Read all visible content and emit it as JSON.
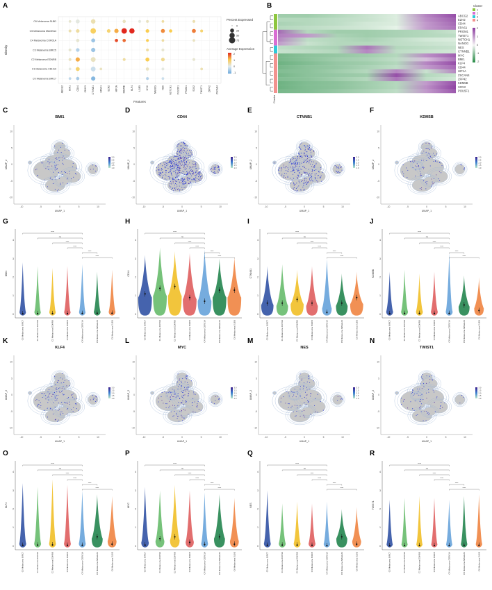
{
  "panel_letters": [
    "A",
    "B",
    "C",
    "D",
    "E",
    "F",
    "G",
    "H",
    "I",
    "J",
    "K",
    "L",
    "M",
    "N",
    "O",
    "P",
    "Q",
    "R"
  ],
  "chart_data": [
    {
      "panel": "A",
      "type": "scatter",
      "subtype": "dot-plot",
      "xlabel": "Features",
      "ylabel": "Identity",
      "features": [
        "ABCG2",
        "BMI1",
        "CD44",
        "CD133",
        "CTNNB1",
        "EPAS1",
        "EZH2",
        "HIF1A",
        "KDM5B",
        "KLF4",
        "LGR5",
        "MYC",
        "NANOG",
        "NES",
        "NOTCH1",
        "POU5F1",
        "PROM1",
        "SOX2",
        "TWIST1",
        "ZFP42",
        "ZSCAN4"
      ],
      "identities": [
        "C6 Melanoma SLBD",
        "C5 Melanoma MAGEA4",
        "C4 Melanoma COR01A",
        "C3 Melanoma BIRC5",
        "C2 Melanoma EDNRB",
        "C1 Melanoma CDH19",
        "C0 Melanoma BIRC7"
      ],
      "size_legend_title": "Percent Expressed",
      "size_breaks": [
        0,
        25,
        50,
        75
      ],
      "color_legend_title": "Average Expression",
      "color_breaks": [
        2,
        1,
        0,
        -1
      ],
      "dots": [
        {
          "r": 0,
          "c": 1,
          "pct": 8,
          "avg": 0.2
        },
        {
          "r": 0,
          "c": 2,
          "pct": 25,
          "avg": 0.1
        },
        {
          "r": 0,
          "c": 4,
          "pct": 35,
          "avg": 0.4
        },
        {
          "r": 0,
          "c": 8,
          "pct": 15,
          "avg": 0.3
        },
        {
          "r": 0,
          "c": 10,
          "pct": 10,
          "avg": 0.1
        },
        {
          "r": 0,
          "c": 11,
          "pct": 10,
          "avg": 0.3
        },
        {
          "r": 0,
          "c": 13,
          "pct": 8,
          "avg": 0.5
        },
        {
          "r": 0,
          "c": 17,
          "pct": 10,
          "avg": 0.4
        },
        {
          "r": 1,
          "c": 1,
          "pct": 10,
          "avg": 0.4
        },
        {
          "r": 1,
          "c": 2,
          "pct": 20,
          "avg": 0.5
        },
        {
          "r": 1,
          "c": 4,
          "pct": 55,
          "avg": 0.9
        },
        {
          "r": 1,
          "c": 6,
          "pct": 20,
          "avg": 0.8
        },
        {
          "r": 1,
          "c": 7,
          "pct": 30,
          "avg": 1.2
        },
        {
          "r": 1,
          "c": 8,
          "pct": 55,
          "avg": 2.0
        },
        {
          "r": 1,
          "c": 9,
          "pct": 50,
          "avg": 2.0
        },
        {
          "r": 1,
          "c": 11,
          "pct": 20,
          "avg": 1.0
        },
        {
          "r": 1,
          "c": 13,
          "pct": 25,
          "avg": 1.4
        },
        {
          "r": 1,
          "c": 14,
          "pct": 15,
          "avg": 1.0
        },
        {
          "r": 1,
          "c": 17,
          "pct": 25,
          "avg": 1.5
        },
        {
          "r": 1,
          "c": 18,
          "pct": 10,
          "avg": 0.8
        },
        {
          "r": 2,
          "c": 2,
          "pct": 15,
          "avg": 0.2
        },
        {
          "r": 2,
          "c": 4,
          "pct": 25,
          "avg": -0.6
        },
        {
          "r": 2,
          "c": 7,
          "pct": 15,
          "avg": 1.8
        },
        {
          "r": 2,
          "c": 8,
          "pct": 15,
          "avg": 1.6
        },
        {
          "r": 2,
          "c": 11,
          "pct": 10,
          "avg": 1.0
        },
        {
          "r": 2,
          "c": 13,
          "pct": 8,
          "avg": 0.5
        },
        {
          "r": 2,
          "c": 17,
          "pct": 8,
          "avg": 0.3
        },
        {
          "r": 3,
          "c": 1,
          "pct": 10,
          "avg": 0.2
        },
        {
          "r": 3,
          "c": 2,
          "pct": 20,
          "avg": -0.4
        },
        {
          "r": 3,
          "c": 4,
          "pct": 30,
          "avg": -0.6
        },
        {
          "r": 3,
          "c": 11,
          "pct": 10,
          "avg": 0.5
        },
        {
          "r": 3,
          "c": 13,
          "pct": 10,
          "avg": 0.2
        },
        {
          "r": 4,
          "c": 1,
          "pct": 10,
          "avg": 0.3
        },
        {
          "r": 4,
          "c": 2,
          "pct": 30,
          "avg": 1.2
        },
        {
          "r": 4,
          "c": 4,
          "pct": 40,
          "avg": 0.3
        },
        {
          "r": 4,
          "c": 8,
          "pct": 10,
          "avg": 0.5
        },
        {
          "r": 4,
          "c": 11,
          "pct": 25,
          "avg": 1.0
        },
        {
          "r": 4,
          "c": 13,
          "pct": 20,
          "avg": 0.6
        },
        {
          "r": 4,
          "c": 17,
          "pct": 10,
          "avg": 0.2
        },
        {
          "r": 5,
          "c": 1,
          "pct": 8,
          "avg": 0.1
        },
        {
          "r": 5,
          "c": 2,
          "pct": 25,
          "avg": 0.8
        },
        {
          "r": 5,
          "c": 4,
          "pct": 40,
          "avg": -0.2
        },
        {
          "r": 5,
          "c": 5,
          "pct": 8,
          "avg": 0.3
        },
        {
          "r": 5,
          "c": 11,
          "pct": 15,
          "avg": 0.3
        },
        {
          "r": 5,
          "c": 13,
          "pct": 10,
          "avg": 0.1
        },
        {
          "r": 5,
          "c": 18,
          "pct": 8,
          "avg": 0.4
        },
        {
          "r": 6,
          "c": 1,
          "pct": 8,
          "avg": -0.3
        },
        {
          "r": 6,
          "c": 2,
          "pct": 15,
          "avg": -0.5
        },
        {
          "r": 6,
          "c": 4,
          "pct": 30,
          "avg": -0.8
        },
        {
          "r": 6,
          "c": 11,
          "pct": 10,
          "avg": -0.4
        },
        {
          "r": 6,
          "c": 13,
          "pct": 8,
          "avg": -0.2
        }
      ]
    },
    {
      "panel": "B",
      "type": "heatmap",
      "genes": [
        "ABCG2",
        "EZH2",
        "CD44",
        "EPAS1",
        "PROM1",
        "TWIST1",
        "NOTCH1",
        "NANOG",
        "NES",
        "CTNNB1",
        "MYC",
        "BMI1",
        "KLF4",
        "CD44",
        "HIF1A",
        "ZSCAN4",
        "ZFP42",
        "KDM5B",
        "SOX2",
        "POU5F1"
      ],
      "gene_cluster": [
        1,
        1,
        1,
        1,
        2,
        2,
        2,
        2,
        3,
        3,
        4,
        4,
        4,
        4,
        4,
        4,
        4,
        4,
        4,
        4
      ],
      "cluster_legend_title": "Cluster",
      "cluster_labels": [
        "1",
        "2",
        "3",
        "4"
      ],
      "cluster_colors": [
        "#8dc63f",
        "#d86ed2",
        "#2ec9d8",
        "#f2928e"
      ],
      "scale_breaks": [
        2,
        1,
        0,
        -1,
        -2
      ],
      "annotation_label": "Cluster",
      "segment_values": [
        [
          -0.8,
          -0.8,
          -0.6,
          -0.4,
          -0.2,
          1.2,
          1.8
        ],
        [
          -0.6,
          -0.6,
          -0.5,
          -0.4,
          -0.2,
          1.1,
          1.6
        ],
        [
          -0.7,
          -0.6,
          -0.5,
          -0.3,
          -0.2,
          1.0,
          1.5
        ],
        [
          -0.6,
          -0.5,
          -0.4,
          -0.3,
          -0.1,
          1.0,
          1.4
        ],
        [
          1.5,
          -0.6,
          -0.8,
          -0.8,
          -0.7,
          -0.6,
          -0.4
        ],
        [
          1.3,
          1.0,
          -0.7,
          -0.8,
          -0.7,
          -0.6,
          -0.5
        ],
        [
          1.2,
          -0.5,
          -0.6,
          -0.7,
          -0.5,
          -0.3,
          -0.2
        ],
        [
          1.0,
          -0.4,
          -0.6,
          -0.6,
          -0.5,
          -0.4,
          -0.3
        ],
        [
          -0.5,
          -0.6,
          -0.7,
          1.4,
          -0.6,
          -0.5,
          -0.4
        ],
        [
          -0.4,
          -0.5,
          -0.6,
          1.2,
          -0.5,
          -0.4,
          -0.3
        ],
        [
          -1.2,
          -1.0,
          -0.9,
          -0.8,
          -0.6,
          1.1,
          1.6
        ],
        [
          -1.2,
          -1.0,
          -0.8,
          -0.7,
          -0.5,
          0.6,
          1.4
        ],
        [
          -1.3,
          -1.1,
          -0.9,
          -0.8,
          -0.6,
          1.2,
          1.8
        ],
        [
          -1.2,
          -1.0,
          -0.9,
          -0.7,
          -0.5,
          1.0,
          1.5
        ],
        [
          -1.1,
          -1.0,
          -0.8,
          -0.6,
          1.2,
          -0.4,
          1.2
        ],
        [
          -1.2,
          -1.0,
          -0.9,
          -0.8,
          1.8,
          -0.6,
          -0.4
        ],
        [
          -1.1,
          -1.0,
          -0.8,
          -0.6,
          1.4,
          -0.5,
          -0.3
        ],
        [
          -1.3,
          -1.1,
          -1.0,
          -0.8,
          -0.6,
          1.0,
          1.8
        ],
        [
          -1.3,
          -1.1,
          -1.0,
          -0.8,
          -0.6,
          1.1,
          1.9
        ],
        [
          -1.2,
          -1.1,
          -0.9,
          -0.7,
          -0.5,
          1.0,
          1.7
        ]
      ]
    },
    {
      "type": "umap-feature-plots",
      "xlabel": "UMAP_1",
      "ylabel": "UMAP_2",
      "x_ticks": [
        -10,
        -5,
        0,
        5,
        10
      ],
      "y_ticks": [
        10,
        5,
        0,
        -5,
        -10
      ],
      "xlim": [
        -12,
        12
      ],
      "ylim": [
        -12,
        12
      ],
      "color_breaks": [
        3.0,
        2.5,
        2.0,
        1.5,
        1.0
      ],
      "panels": [
        {
          "panel": "C",
          "gene": "BMI1",
          "density": 0.05
        },
        {
          "panel": "D",
          "gene": "CD44",
          "density": 0.55
        },
        {
          "panel": "E",
          "gene": "CTNNB1",
          "density": 0.3
        },
        {
          "panel": "F",
          "gene": "KDM5B",
          "density": 0.06
        },
        {
          "panel": "K",
          "gene": "KLF4",
          "density": 0.1
        },
        {
          "panel": "L",
          "gene": "MYC",
          "density": 0.12
        },
        {
          "panel": "M",
          "gene": "NES",
          "density": 0.05
        },
        {
          "panel": "N",
          "gene": "TWIST1",
          "density": 0.04
        }
      ]
    },
    {
      "type": "violin",
      "categories": [
        "C0 Melanoma BIRC7",
        "C1 Melanoma CDH19",
        "C2 Melanoma EDNRB",
        "C3 Melanoma BIRC5",
        "C4 Melanoma COR01A",
        "C5 Melanoma MAGEA4",
        "C6 Melanoma SLBD"
      ],
      "colors": [
        "#3b5ba9",
        "#6fbf73",
        "#f1c232",
        "#e06666",
        "#6fa8dc",
        "#2e8b57",
        "#f08a4b"
      ],
      "y_ticks": [
        0,
        1,
        2,
        3,
        4
      ],
      "ylim": [
        -0.2,
        4.6
      ],
      "significance_labels": [
        "****",
        "ns",
        "****",
        "****",
        "****",
        "****"
      ],
      "panels": [
        {
          "panel": "G",
          "gene": "BMI1",
          "ymax": [
            2.8,
            2.6,
            2.5,
            2.6,
            2.7,
            2.3,
            2.4
          ],
          "median": [
            0.02,
            0.03,
            0.03,
            0.03,
            0.04,
            0.05,
            0.05
          ],
          "bulk": [
            0.12,
            0.12,
            0.12,
            0.12,
            0.12,
            0.14,
            0.14
          ]
        },
        {
          "panel": "H",
          "gene": "CD44",
          "ymax": [
            3.2,
            3.6,
            3.4,
            3.3,
            3.5,
            3.0,
            3.1
          ],
          "median": [
            1.1,
            1.4,
            1.5,
            0.9,
            0.7,
            1.3,
            1.3
          ],
          "bulk": [
            1.0,
            1.1,
            1.1,
            0.9,
            0.8,
            1.0,
            1.0
          ]
        },
        {
          "panel": "I",
          "gene": "CTNNB1",
          "ymax": [
            2.6,
            2.7,
            2.4,
            2.6,
            3.0,
            2.2,
            2.3
          ],
          "median": [
            0.6,
            0.6,
            0.8,
            0.6,
            0.1,
            0.6,
            0.9
          ],
          "bulk": [
            0.55,
            0.5,
            0.6,
            0.5,
            0.35,
            0.5,
            0.6
          ]
        },
        {
          "panel": "J",
          "gene": "KDM5B",
          "ymax": [
            2.3,
            2.4,
            2.2,
            2.3,
            3.3,
            2.1,
            2.0
          ],
          "median": [
            0.03,
            0.04,
            0.04,
            0.04,
            0.04,
            0.5,
            0.2
          ],
          "bulk": [
            0.15,
            0.15,
            0.15,
            0.15,
            0.15,
            0.45,
            0.35
          ]
        },
        {
          "panel": "O",
          "gene": "KLF4",
          "ymax": [
            3.4,
            3.2,
            3.6,
            3.3,
            3.0,
            2.8,
            2.7
          ],
          "median": [
            0.04,
            0.05,
            0.06,
            0.04,
            0.04,
            0.5,
            0.1
          ],
          "bulk": [
            0.15,
            0.15,
            0.15,
            0.15,
            0.15,
            0.45,
            0.3
          ]
        },
        {
          "panel": "P",
          "gene": "MYC",
          "ymax": [
            3.2,
            3.0,
            3.3,
            3.0,
            2.9,
            2.8,
            2.6
          ],
          "median": [
            0.05,
            0.4,
            0.5,
            0.2,
            0.08,
            0.5,
            0.1
          ],
          "bulk": [
            0.2,
            0.3,
            0.35,
            0.25,
            0.15,
            0.45,
            0.3
          ]
        },
        {
          "panel": "Q",
          "gene": "NES",
          "ymax": [
            3.0,
            2.3,
            2.4,
            2.3,
            2.4,
            2.0,
            2.1
          ],
          "median": [
            0.04,
            0.05,
            0.05,
            0.04,
            0.02,
            0.5,
            0.1
          ],
          "bulk": [
            0.15,
            0.15,
            0.15,
            0.15,
            0.12,
            0.45,
            0.3
          ]
        },
        {
          "panel": "R",
          "gene": "TWIST1",
          "ymax": [
            2.5,
            2.6,
            2.7,
            2.6,
            2.5,
            2.7,
            2.8
          ],
          "median": [
            0.02,
            0.03,
            0.03,
            0.03,
            0.03,
            0.04,
            0.04
          ],
          "bulk": [
            0.1,
            0.1,
            0.1,
            0.1,
            0.1,
            0.12,
            0.12
          ]
        }
      ]
    }
  ]
}
